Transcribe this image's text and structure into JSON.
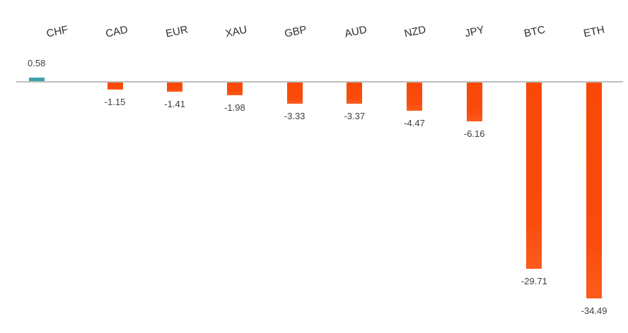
{
  "chart_data": {
    "type": "bar",
    "title": "",
    "xlabel": "",
    "ylabel": "",
    "categories": [
      "CHF",
      "CAD",
      "EUR",
      "XAU",
      "GBP",
      "AUD",
      "NZD",
      "JPY",
      "BTC",
      "ETH"
    ],
    "values": [
      0.58,
      -1.15,
      -1.41,
      -1.98,
      -3.33,
      -3.37,
      -4.47,
      -6.16,
      -29.71,
      -34.49
    ],
    "ylim": [
      -34.49,
      0.58
    ],
    "baseline_value": 0,
    "grid": false,
    "legend": "none",
    "data_labels": true,
    "category_label_rotation_deg": -12,
    "colors": {
      "positive_bar": "#3ba2ac",
      "negative_bar": "#fa4b0c",
      "axis_line": "#bfbfbf",
      "category_text": "#2e2e2e",
      "value_text": "#404040"
    }
  }
}
